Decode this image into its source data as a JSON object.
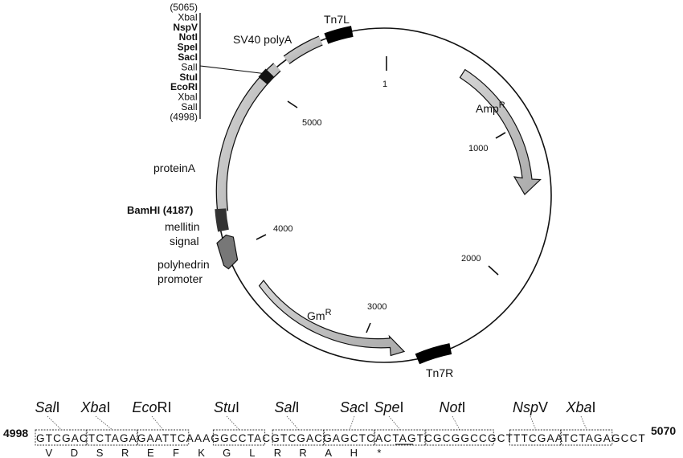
{
  "plasmid": {
    "tick_labels": {
      "t1": "1",
      "t1000": "1000",
      "t2000": "2000",
      "t3000": "3000",
      "t4000": "4000",
      "t5000": "5000"
    },
    "features": {
      "tn7l": "Tn7L",
      "tn7r": "Tn7R",
      "sv40": "SV40 polyA",
      "amp": "Amp",
      "amp_sup": "R",
      "gm": "Gm",
      "gm_sup": "R",
      "proteina": "proteinA",
      "bamhi": "BamHI (4187)",
      "mellitin_1": "mellitin",
      "mellitin_2": "signal",
      "polyhedrin_1": "polyhedrin",
      "polyhedrin_2": "promoter"
    },
    "mcs_list": [
      {
        "text": "(5065)",
        "bold": false
      },
      {
        "text": "XbaI",
        "bold": false
      },
      {
        "text": "NspV",
        "bold": true
      },
      {
        "text": "NotI",
        "bold": true
      },
      {
        "text": "SpeI",
        "bold": true
      },
      {
        "text": "SacI",
        "bold": true
      },
      {
        "text": "SalI",
        "bold": false
      },
      {
        "text": "StuI",
        "bold": true
      },
      {
        "text": "EcoRI",
        "bold": true
      },
      {
        "text": "XbaI",
        "bold": false
      },
      {
        "text": "SalI",
        "bold": false
      },
      {
        "text": "(4998)",
        "bold": false
      }
    ]
  },
  "sequence": {
    "start": "4998",
    "end": "5070",
    "bases": "GTCGACTCTAGAGAATTCAAAGGCCTACGTCGACGAGCTCACTAGTCGCGGCCGCTTTCGAATCTAGAGCCT",
    "amino_acids": [
      "V",
      "D",
      "S",
      "R",
      "E",
      "F",
      "K",
      "G",
      "L",
      "R",
      "R",
      "A",
      "H",
      "*"
    ],
    "enzymes": [
      {
        "italic": "Sal",
        "roman": "I"
      },
      {
        "italic": "Xba",
        "roman": "I"
      },
      {
        "italic": "Eco",
        "roman": "RI"
      },
      {
        "italic": "Stu",
        "roman": "I"
      },
      {
        "italic": "Sal",
        "roman": "I"
      },
      {
        "italic": "Sac",
        "roman": "I"
      },
      {
        "italic": "Spe",
        "roman": "I"
      },
      {
        "italic": "Not",
        "roman": "I"
      },
      {
        "italic": "Nsp",
        "roman": "V"
      },
      {
        "italic": "Xba",
        "roman": "I"
      }
    ]
  }
}
